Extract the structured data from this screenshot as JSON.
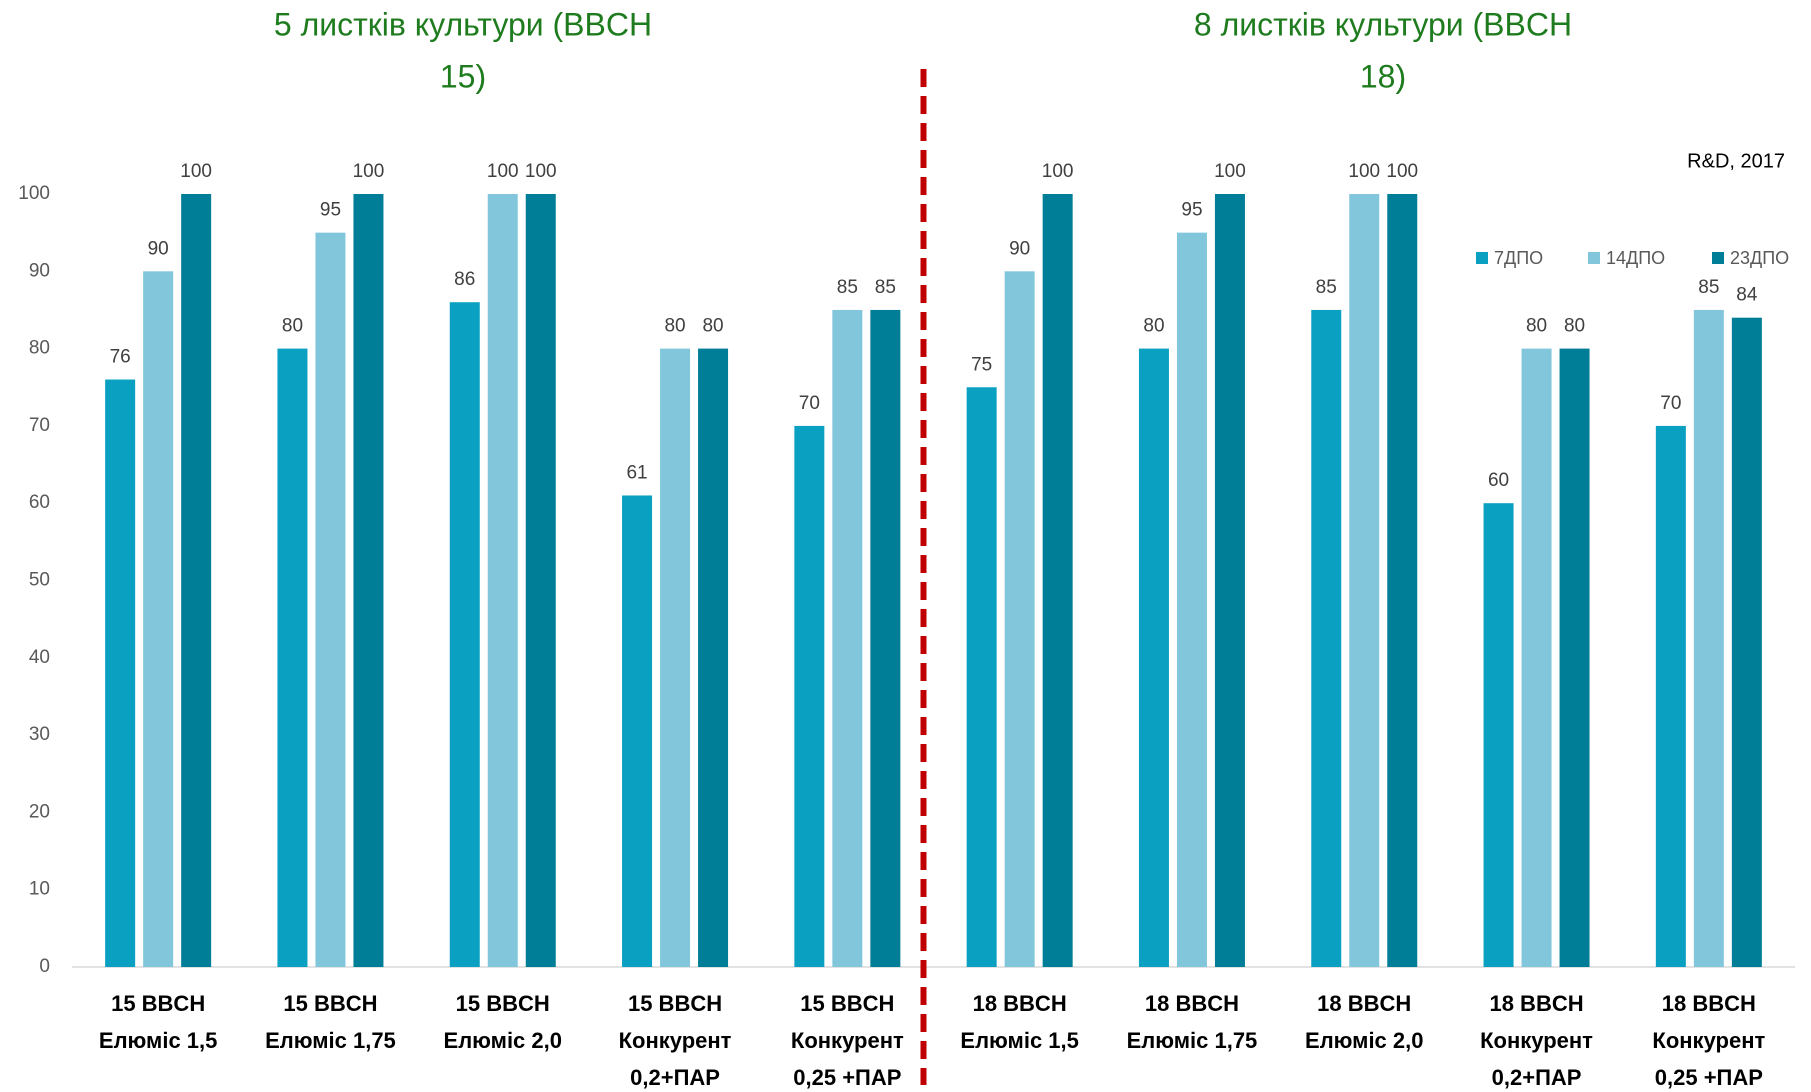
{
  "chart_data": {
    "type": "bar",
    "annotations": [
      [
        "5 листків культури (BBCH",
        "15)"
      ],
      [
        "8 листків культури (BBCH",
        "18)"
      ]
    ],
    "note": "R&D, 2017",
    "categories": [
      [
        "15 BBCH",
        "Елюміс 1,5"
      ],
      [
        "15 BBCH",
        "Елюміс 1,75"
      ],
      [
        "15 BBCH",
        "Елюміс 2,0"
      ],
      [
        "15 BBCH",
        "Конкурент",
        "0,2+ПАР"
      ],
      [
        "15 BBCH",
        "Конкурент",
        "0,25 +ПАР"
      ],
      [
        "18 BBCH",
        "Елюміс 1,5"
      ],
      [
        "18 BBCH",
        "Елюміс 1,75"
      ],
      [
        "18 BBCH",
        "Елюміс 2,0"
      ],
      [
        "18 BBCH",
        "Конкурент",
        "0,2+ПАР"
      ],
      [
        "18 BBCH",
        "Конкурент",
        "0,25 +ПАР"
      ]
    ],
    "series": [
      {
        "name": "7ДПО",
        "color": "#0aa0c2",
        "values": [
          76,
          80,
          86,
          61,
          70,
          75,
          80,
          85,
          60,
          70
        ]
      },
      {
        "name": "14ДПО",
        "color": "#82c6dc",
        "values": [
          90,
          95,
          100,
          80,
          85,
          90,
          95,
          100,
          80,
          85
        ]
      },
      {
        "name": "23ДПО",
        "color": "#007e98",
        "values": [
          100,
          100,
          100,
          80,
          85,
          100,
          100,
          100,
          80,
          84
        ]
      }
    ],
    "ylim": [
      0,
      100
    ],
    "yticks": [
      0,
      10,
      20,
      30,
      40,
      50,
      60,
      70,
      80,
      90,
      100
    ],
    "grid": false,
    "legend": "upper right",
    "divider_color": "#c00000"
  }
}
